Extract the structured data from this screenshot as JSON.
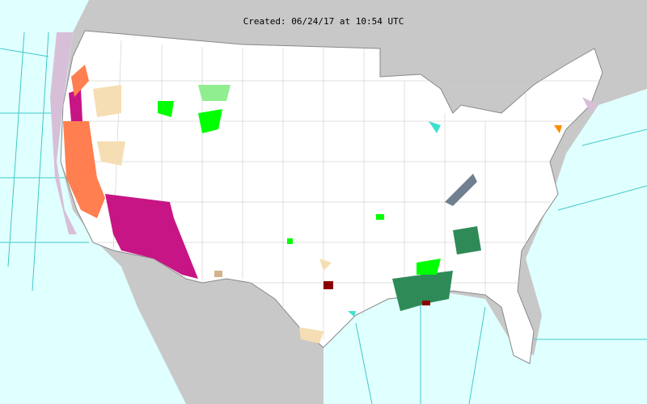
{
  "title": "Created: 06/24/17 at 10:54 UTC",
  "colors": {
    "ocean": "#e0ffff",
    "land_outside": "#c8c8c8",
    "us_land": "#ffffff",
    "county_lines": "#b0b0b0",
    "marine_zone_lines": "#40c8c8",
    "excessive_heat_warning": "#c71585",
    "heat_advisory": "#ff7f50",
    "light_tan_hazard": "#f5deb3",
    "green_hazard": "#00ff00",
    "light_green_hazard": "#90ee90",
    "dark_green_hazard": "#2e8b57",
    "gray_hazard": "#708090",
    "coastal_hazard_lilac": "#d8bfd8",
    "turquoise_hazard": "#40e0d0",
    "dark_red_hazard": "#8b0000",
    "orange_hazard": "#ff8c00"
  }
}
